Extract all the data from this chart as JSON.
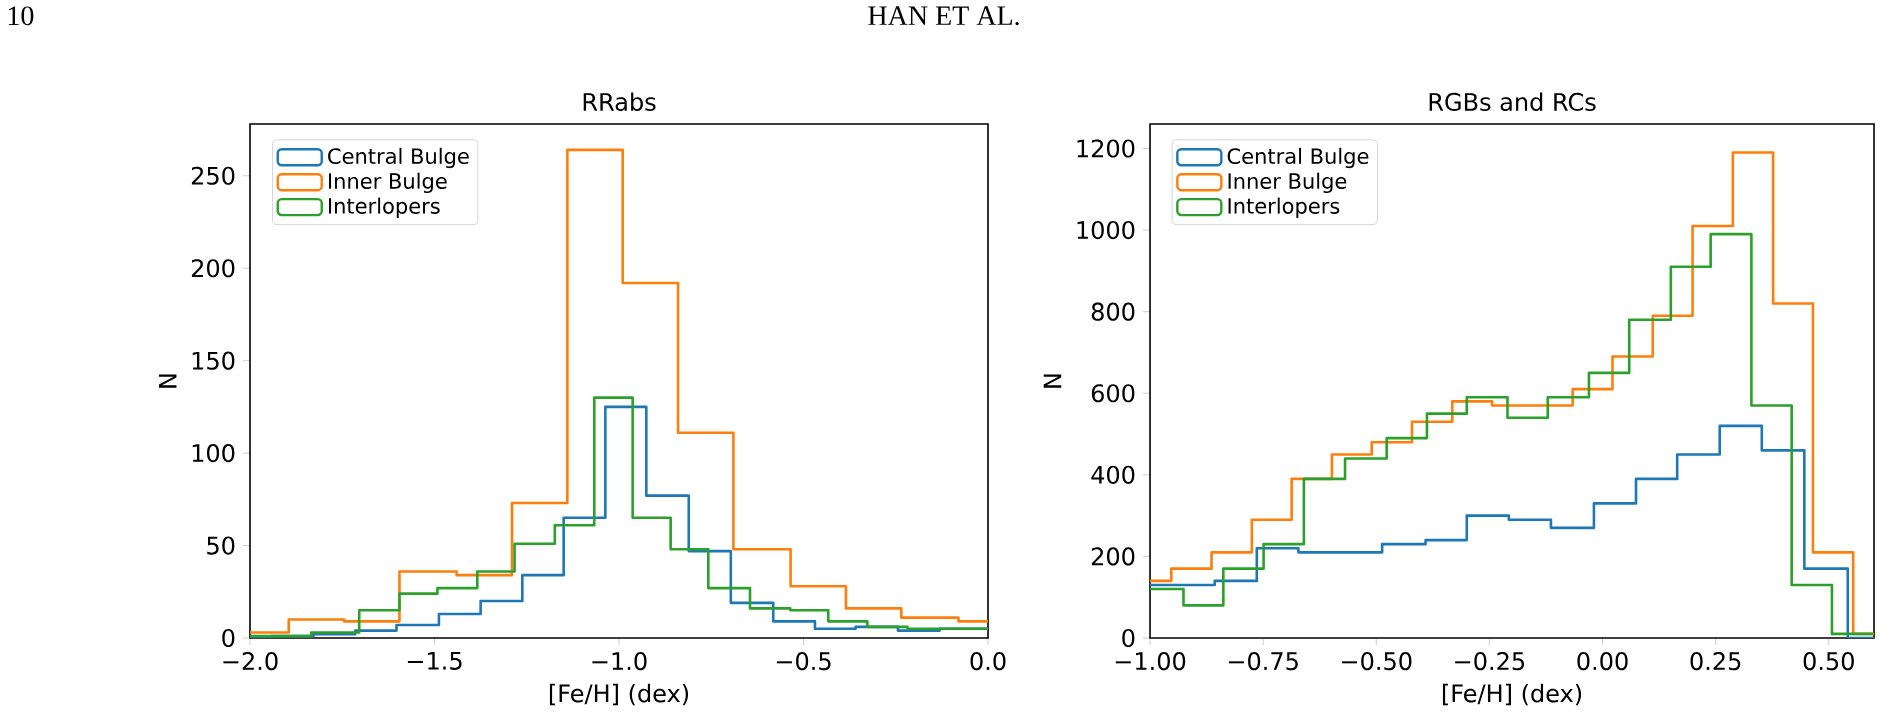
{
  "chart_data": [
    {
      "type": "step",
      "title": "RRabs",
      "xlabel": "[Fe/H] (dex)",
      "ylabel": "N",
      "annotations": [
        "10",
        "HAN ET AL."
      ],
      "legend": "top left",
      "xlim": [
        -2.0,
        0.0
      ],
      "ylim": [
        0,
        278
      ],
      "xticks": [
        {
          "value": -2.0,
          "label": "−2.0"
        },
        {
          "value": -1.5,
          "label": "−1.5"
        },
        {
          "value": -1.0,
          "label": "−1.0"
        },
        {
          "value": -0.5,
          "label": "−0.5"
        },
        {
          "value": 0.0,
          "label": "0.0"
        }
      ],
      "yticks": [
        0,
        50,
        100,
        150,
        200,
        250
      ],
      "series": [
        {
          "name": "Central Bulge",
          "color": "#1f77b4",
          "x": [
            -2.0,
            -1.941,
            -1.828,
            -1.715,
            -1.603,
            -1.488,
            -1.375,
            -1.262,
            -1.15,
            -1.037,
            -0.926,
            -0.811,
            -0.697,
            -0.582,
            -0.469,
            -0.359,
            -0.244,
            -0.131,
            -0.018,
            0.0
          ],
          "values": [
            0,
            1,
            2,
            4,
            7,
            13,
            20,
            34,
            65,
            125,
            77,
            47,
            19,
            9,
            5,
            6,
            4,
            5,
            5,
            5
          ]
        },
        {
          "name": "Inner Bulge",
          "color": "#ff7f0e",
          "x": [
            -2.0,
            -1.895,
            -1.745,
            -1.595,
            -1.44,
            -1.29,
            -1.14,
            -0.99,
            -0.84,
            -0.69,
            -0.535,
            -0.385,
            -0.235,
            -0.08,
            0.0
          ],
          "values": [
            3,
            10,
            9,
            36,
            34,
            73,
            264,
            192,
            111,
            48,
            28,
            16,
            11,
            9,
            9
          ]
        },
        {
          "name": "Interlopers",
          "color": "#2ca02c",
          "x": [
            -2.0,
            -1.941,
            -1.834,
            -1.704,
            -1.595,
            -1.492,
            -1.384,
            -1.283,
            -1.174,
            -1.067,
            -0.963,
            -0.86,
            -0.758,
            -0.645,
            -0.536,
            -0.433,
            -0.327,
            -0.218,
            -0.115,
            -0.007,
            0.0
          ],
          "values": [
            1,
            1,
            3,
            15,
            24,
            27,
            36,
            51,
            61,
            130,
            65,
            48,
            27,
            16,
            15,
            9,
            6,
            5,
            5,
            5,
            5
          ]
        }
      ]
    },
    {
      "type": "step",
      "title": "RGBs and RCs",
      "xlabel": "[Fe/H] (dex)",
      "ylabel": "N",
      "legend": "top left",
      "xlim": [
        -1.0,
        0.6
      ],
      "ylim": [
        0,
        1260
      ],
      "xticks": [
        {
          "value": -1.0,
          "label": "−1.00"
        },
        {
          "value": -0.75,
          "label": "−0.75"
        },
        {
          "value": -0.5,
          "label": "−0.50"
        },
        {
          "value": -0.25,
          "label": "−0.25"
        },
        {
          "value": 0.0,
          "label": "0.00"
        },
        {
          "value": 0.25,
          "label": "0.25"
        },
        {
          "value": 0.5,
          "label": "0.50"
        }
      ],
      "yticks": [
        0,
        200,
        400,
        600,
        800,
        1000,
        1200
      ],
      "series": [
        {
          "name": "Central Bulge",
          "color": "#1f77b4",
          "x": [
            -1.0,
            -0.95,
            -0.857,
            -0.764,
            -0.672,
            -0.576,
            -0.487,
            -0.391,
            -0.3,
            -0.207,
            -0.114,
            -0.019,
            0.074,
            0.165,
            0.259,
            0.352,
            0.446,
            0.542,
            0.6
          ],
          "values": [
            130,
            130,
            140,
            220,
            210,
            210,
            230,
            240,
            300,
            290,
            270,
            330,
            390,
            450,
            520,
            460,
            170,
            0,
            0
          ]
        },
        {
          "name": "Inner Bulge",
          "color": "#ff7f0e",
          "x": [
            -1.0,
            -0.953,
            -0.864,
            -0.775,
            -0.687,
            -0.598,
            -0.51,
            -0.421,
            -0.332,
            -0.244,
            -0.155,
            -0.066,
            0.022,
            0.111,
            0.199,
            0.288,
            0.377,
            0.465,
            0.554,
            0.6
          ],
          "values": [
            140,
            170,
            210,
            290,
            390,
            450,
            480,
            530,
            580,
            570,
            570,
            610,
            690,
            790,
            1010,
            1190,
            820,
            210,
            10,
            10
          ]
        },
        {
          "name": "Interlopers",
          "color": "#2ca02c",
          "x": [
            -1.0,
            -0.926,
            -0.838,
            -0.749,
            -0.66,
            -0.569,
            -0.477,
            -0.388,
            -0.3,
            -0.21,
            -0.121,
            -0.03,
            0.059,
            0.151,
            0.239,
            0.329,
            0.418,
            0.507,
            0.598
          ],
          "values": [
            120,
            80,
            170,
            230,
            390,
            440,
            490,
            550,
            590,
            540,
            590,
            650,
            780,
            910,
            990,
            570,
            130,
            10,
            10
          ]
        }
      ]
    }
  ]
}
